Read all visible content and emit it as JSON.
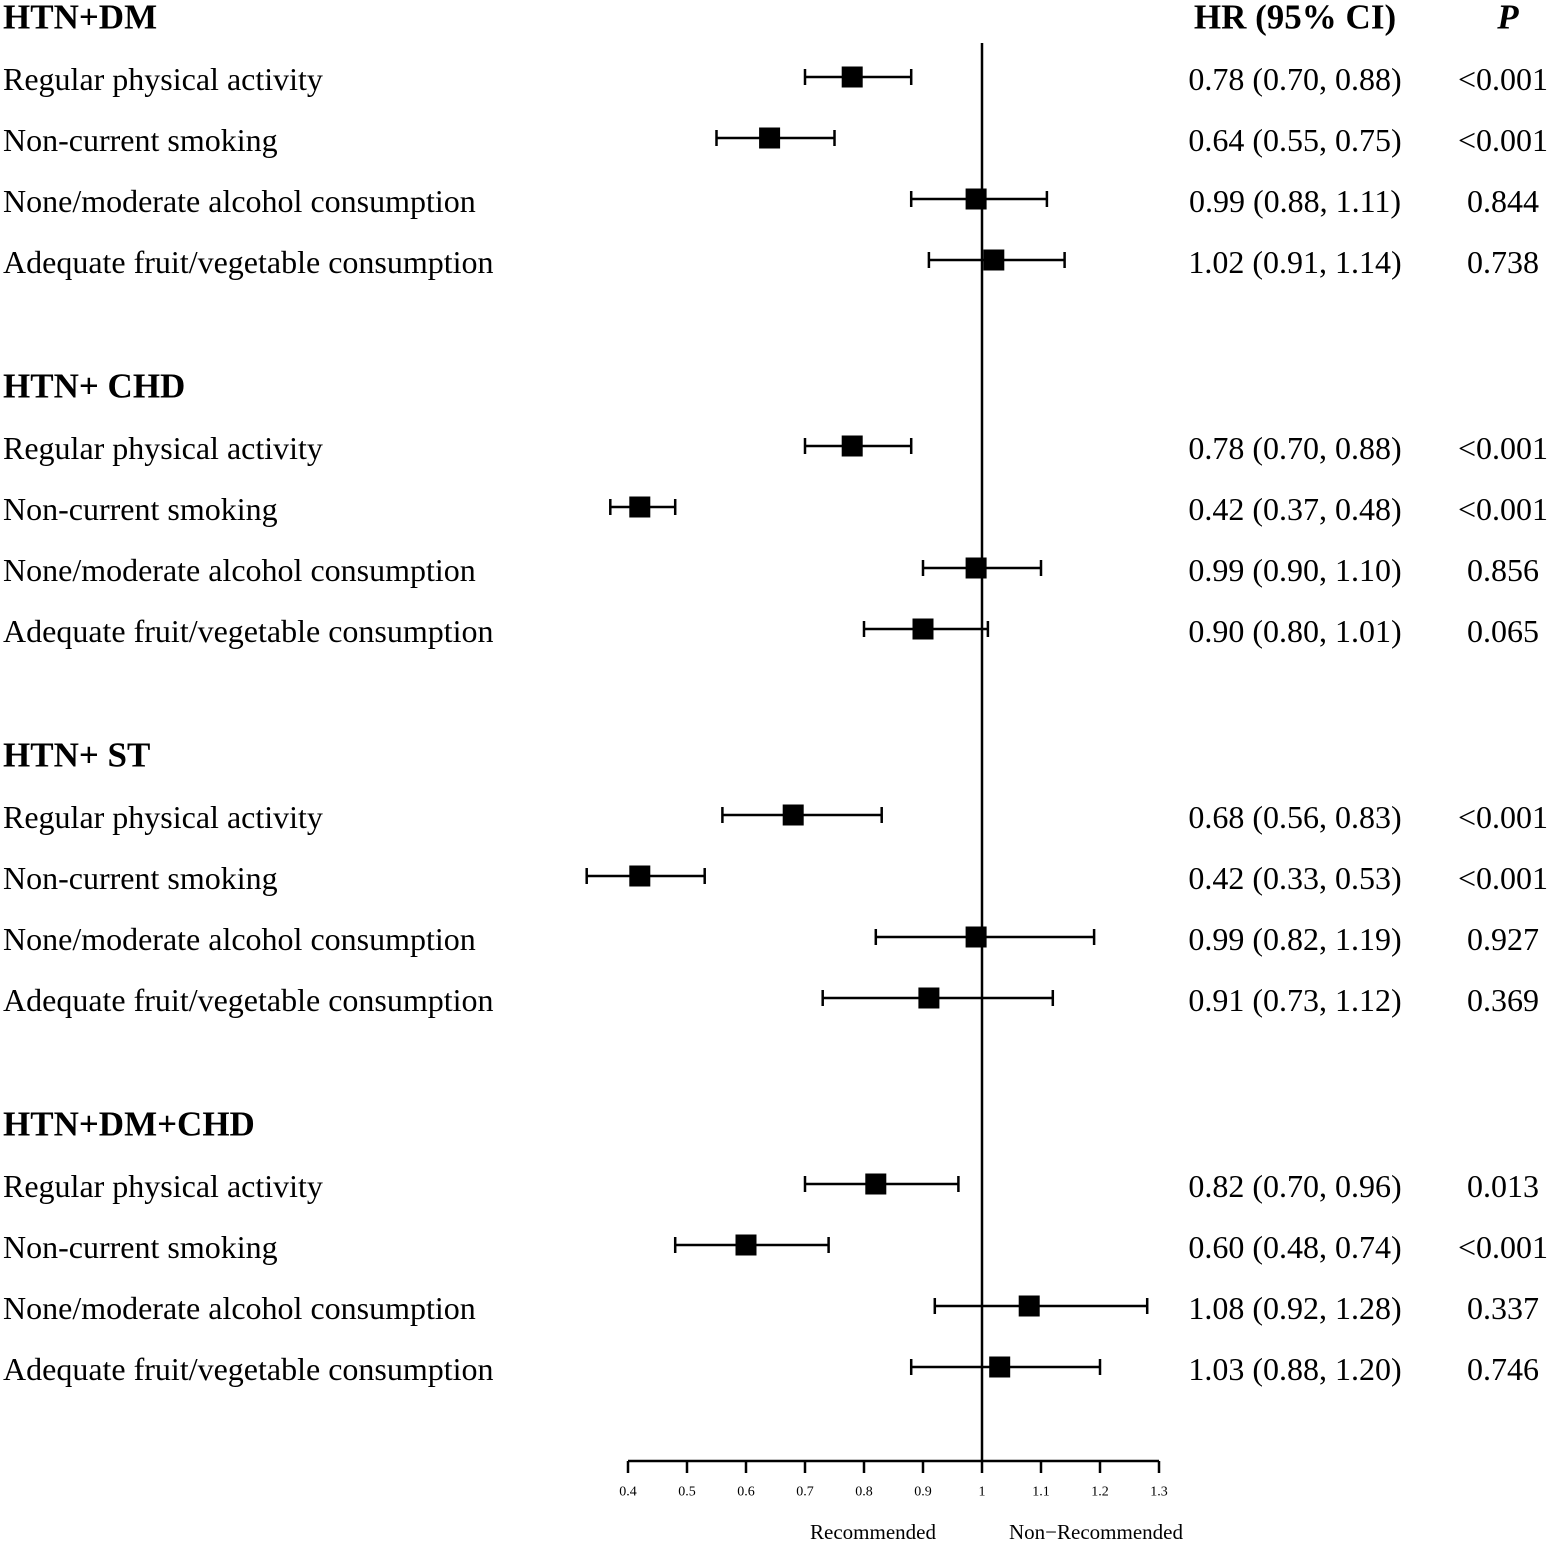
{
  "chart_data": {
    "type": "forest",
    "column_headers": {
      "hr": "HR (95% CI)",
      "p": "P"
    },
    "reference_line": 1,
    "x_ticks": [
      "0.4",
      "0.5",
      "0.6",
      "0.7",
      "0.8",
      "0.9",
      "1",
      "1.1",
      "1.2",
      "1.3"
    ],
    "xlim": [
      0.4,
      1.3
    ],
    "direction_labels": {
      "left": "Recommended",
      "right": "Non−Recommended"
    },
    "groups": [
      {
        "title": "HTN+DM",
        "rows": [
          {
            "label": "Regular physical activity",
            "hr": 0.78,
            "lo": 0.7,
            "hi": 0.88,
            "hr_text": "0.78 (0.70, 0.88)",
            "p": "<0.001"
          },
          {
            "label": "Non-current smoking",
            "hr": 0.64,
            "lo": 0.55,
            "hi": 0.75,
            "hr_text": "0.64 (0.55, 0.75)",
            "p": "<0.001"
          },
          {
            "label": "None/moderate alcohol consumption",
            "hr": 0.99,
            "lo": 0.88,
            "hi": 1.11,
            "hr_text": "0.99 (0.88, 1.11)",
            "p": "0.844"
          },
          {
            "label": "Adequate fruit/vegetable consumption",
            "hr": 1.02,
            "lo": 0.91,
            "hi": 1.14,
            "hr_text": "1.02 (0.91, 1.14)",
            "p": "0.738"
          }
        ]
      },
      {
        "title": "HTN+ CHD",
        "rows": [
          {
            "label": "Regular physical activity",
            "hr": 0.78,
            "lo": 0.7,
            "hi": 0.88,
            "hr_text": "0.78 (0.70, 0.88)",
            "p": "<0.001"
          },
          {
            "label": "Non-current smoking",
            "hr": 0.42,
            "lo": 0.37,
            "hi": 0.48,
            "hr_text": "0.42 (0.37, 0.48)",
            "p": "<0.001"
          },
          {
            "label": "None/moderate alcohol consumption",
            "hr": 0.99,
            "lo": 0.9,
            "hi": 1.1,
            "hr_text": "0.99 (0.90, 1.10)",
            "p": "0.856"
          },
          {
            "label": "Adequate fruit/vegetable consumption",
            "hr": 0.9,
            "lo": 0.8,
            "hi": 1.01,
            "hr_text": "0.90 (0.80, 1.01)",
            "p": "0.065"
          }
        ]
      },
      {
        "title": "HTN+ ST",
        "rows": [
          {
            "label": "Regular physical activity",
            "hr": 0.68,
            "lo": 0.56,
            "hi": 0.83,
            "hr_text": "0.68 (0.56, 0.83)",
            "p": "<0.001"
          },
          {
            "label": "Non-current smoking",
            "hr": 0.42,
            "lo": 0.33,
            "hi": 0.53,
            "hr_text": "0.42 (0.33, 0.53)",
            "p": "<0.001"
          },
          {
            "label": "None/moderate alcohol consumption",
            "hr": 0.99,
            "lo": 0.82,
            "hi": 1.19,
            "hr_text": "0.99 (0.82, 1.19)",
            "p": "0.927"
          },
          {
            "label": "Adequate fruit/vegetable consumption",
            "hr": 0.91,
            "lo": 0.73,
            "hi": 1.12,
            "hr_text": "0.91 (0.73, 1.12)",
            "p": "0.369"
          }
        ]
      },
      {
        "title": "HTN+DM+CHD",
        "rows": [
          {
            "label": "Regular physical activity",
            "hr": 0.82,
            "lo": 0.7,
            "hi": 0.96,
            "hr_text": "0.82 (0.70, 0.96)",
            "p": "0.013"
          },
          {
            "label": "Non-current smoking",
            "hr": 0.6,
            "lo": 0.48,
            "hi": 0.74,
            "hr_text": "0.60 (0.48, 0.74)",
            "p": "<0.001"
          },
          {
            "label": "None/moderate alcohol consumption",
            "hr": 1.08,
            "lo": 0.92,
            "hi": 1.28,
            "hr_text": "1.08 (0.92, 1.28)",
            "p": "0.337"
          },
          {
            "label": "Adequate fruit/vegetable consumption",
            "hr": 1.03,
            "lo": 0.88,
            "hi": 1.2,
            "hr_text": "1.03 (0.88, 1.20)",
            "p": "0.746"
          }
        ]
      }
    ]
  }
}
